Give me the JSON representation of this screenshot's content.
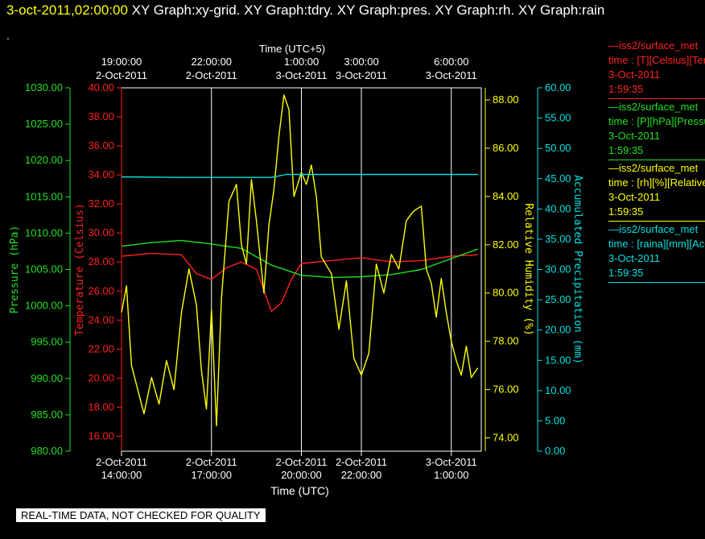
{
  "header": {
    "date_label": "3-oct-2011,02:00:00",
    "graphs_label": "  XY Graph:xy-grid.  XY Graph:tdry.  XY Graph:pres.  XY Graph:rh.  XY Graph:rain",
    "dot": "."
  },
  "legend": [
    {
      "line1": "—iss2/surface_met",
      "line2": "time : [T][Celsius][Temp",
      "line3": "3-Oct-2011",
      "line4": "1:59:35",
      "color": "#ff2020"
    },
    {
      "line1": "—iss2/surface_met",
      "line2": "time : [P][hPa][Pressure",
      "line3": "3-Oct-2011",
      "line4": "1:59:35",
      "color": "#20e020"
    },
    {
      "line1": "—iss2/surface_met",
      "line2": "time : [rh][%][Relative",
      "line3": "3-Oct-2011",
      "line4": "1:59:35",
      "color": "#ffff00"
    },
    {
      "line1": "—iss2/surface_met",
      "line2": "time : [raina][mm][Accum",
      "line3": "3-Oct-2011",
      "line4": "1:59:35",
      "color": "#00e0e0"
    }
  ],
  "footer": {
    "quality_notice": "REAL-TIME DATA, NOT CHECKED FOR QUALITY"
  },
  "chart_data": {
    "type": "line",
    "top_axis": {
      "title": "Time (UTC+5)",
      "ticks": [
        {
          "x": "2011-10-02T14:00",
          "l1": "19:00:00",
          "l2": "2-Oct-2011"
        },
        {
          "x": "2011-10-02T17:00",
          "l1": "22:00:00",
          "l2": "2-Oct-2011"
        },
        {
          "x": "2011-10-02T20:00",
          "l1": "1:00:00",
          "l2": "3-Oct-2011"
        },
        {
          "x": "2011-10-02T22:00",
          "l1": "3:00:00",
          "l2": "3-Oct-2011"
        },
        {
          "x": "2011-10-03T01:00",
          "l1": "6:00:00",
          "l2": "3-Oct-2011"
        }
      ]
    },
    "bottom_axis": {
      "title": "Time (UTC)",
      "ticks": [
        {
          "x": "2011-10-02T14:00",
          "l1": "2-Oct-2011",
          "l2": "14:00:00"
        },
        {
          "x": "2011-10-02T17:00",
          "l1": "2-Oct-2011",
          "l2": "17:00:00"
        },
        {
          "x": "2011-10-02T20:00",
          "l1": "2-Oct-2011",
          "l2": "20:00:00"
        },
        {
          "x": "2011-10-02T22:00",
          "l1": "2-Oct-2011",
          "l2": "22:00:00"
        },
        {
          "x": "2011-10-03T01:00",
          "l1": "3-Oct-2011",
          "l2": "1:00:00"
        }
      ]
    },
    "xlim": [
      "2011-10-02T14:00",
      "2011-10-03T02:00"
    ],
    "axes": {
      "pressure": {
        "label": "Pressure (hPa)",
        "color": "#20e020",
        "ylim": [
          980,
          1030
        ],
        "ticks": [
          "1030.00",
          "1025.00",
          "1020.00",
          "1015.00",
          "1010.00",
          "1005.00",
          "1000.00",
          "995.00",
          "990.00",
          "985.00",
          "980.00"
        ]
      },
      "temperature": {
        "label": "Temperature (Celsius)",
        "color": "#ff2020",
        "ylim": [
          14.97,
          40
        ],
        "ticks": [
          "40.00",
          "38.00",
          "36.00",
          "34.00",
          "32.00",
          "30.00",
          "28.00",
          "26.00",
          "24.00",
          "22.00",
          "20.00",
          "18.00",
          "16.00"
        ]
      },
      "humidity": {
        "label": "Relative Humidity (%)",
        "color": "#ffff00",
        "ylim": [
          73.45,
          88.5
        ],
        "ticks": [
          "88.00",
          "86.00",
          "84.00",
          "82.00",
          "80.00",
          "78.00",
          "76.00",
          "74.00"
        ]
      },
      "precip": {
        "label": "Accumulated Precipitation (mm)",
        "color": "#00e0e0",
        "ylim": [
          0,
          60
        ],
        "ticks": [
          "60.00",
          "55.00",
          "50.00",
          "45.00",
          "40.00",
          "35.00",
          "30.00",
          "25.00",
          "20.00",
          "15.00",
          "10.00",
          "5.00",
          "0.00"
        ]
      }
    },
    "series": [
      {
        "name": "temperature",
        "axis": "temperature",
        "x": [
          "2011-10-02T14:00",
          "2011-10-02T15:00",
          "2011-10-02T16:00",
          "2011-10-02T16:30",
          "2011-10-02T17:00",
          "2011-10-02T17:30",
          "2011-10-02T18:00",
          "2011-10-02T18:30",
          "2011-10-02T19:00",
          "2011-10-02T19:20",
          "2011-10-02T19:40",
          "2011-10-02T20:00",
          "2011-10-02T21:00",
          "2011-10-02T22:00",
          "2011-10-02T23:00",
          "2011-10-03T00:00",
          "2011-10-03T01:00",
          "2011-10-03T01:53"
        ],
        "values": [
          28.4,
          28.6,
          28.5,
          27.2,
          26.8,
          27.6,
          28.0,
          27.5,
          24.6,
          25.2,
          26.8,
          27.9,
          28.1,
          28.3,
          28.0,
          28.1,
          28.4,
          28.5
        ]
      },
      {
        "name": "pressure",
        "axis": "pressure",
        "x": [
          "2011-10-02T14:00",
          "2011-10-02T15:00",
          "2011-10-02T16:00",
          "2011-10-02T17:00",
          "2011-10-02T18:00",
          "2011-10-02T19:00",
          "2011-10-02T20:00",
          "2011-10-02T21:00",
          "2011-10-02T22:00",
          "2011-10-02T23:00",
          "2011-10-03T00:00",
          "2011-10-03T01:00",
          "2011-10-03T01:53"
        ],
        "values": [
          1008.2,
          1008.7,
          1009.0,
          1008.5,
          1007.9,
          1005.6,
          1004.2,
          1003.9,
          1004.0,
          1004.3,
          1005.0,
          1006.5,
          1007.8
        ]
      },
      {
        "name": "humidity",
        "axis": "humidity",
        "x": [
          "2011-10-02T14:00",
          "2011-10-02T14:10",
          "2011-10-02T14:20",
          "2011-10-02T14:30",
          "2011-10-02T14:45",
          "2011-10-02T15:00",
          "2011-10-02T15:15",
          "2011-10-02T15:30",
          "2011-10-02T15:45",
          "2011-10-02T16:00",
          "2011-10-02T16:15",
          "2011-10-02T16:30",
          "2011-10-02T16:40",
          "2011-10-02T16:50",
          "2011-10-02T17:00",
          "2011-10-02T17:10",
          "2011-10-02T17:20",
          "2011-10-02T17:35",
          "2011-10-02T17:50",
          "2011-10-02T18:00",
          "2011-10-02T18:10",
          "2011-10-02T18:20",
          "2011-10-02T18:30",
          "2011-10-02T18:45",
          "2011-10-02T18:55",
          "2011-10-02T19:05",
          "2011-10-02T19:15",
          "2011-10-02T19:25",
          "2011-10-02T19:35",
          "2011-10-02T19:45",
          "2011-10-02T20:00",
          "2011-10-02T20:10",
          "2011-10-02T20:20",
          "2011-10-02T20:30",
          "2011-10-02T20:40",
          "2011-10-02T21:00",
          "2011-10-02T21:15",
          "2011-10-02T21:30",
          "2011-10-02T21:45",
          "2011-10-02T22:00",
          "2011-10-02T22:15",
          "2011-10-02T22:30",
          "2011-10-02T22:45",
          "2011-10-02T23:00",
          "2011-10-02T23:15",
          "2011-10-02T23:30",
          "2011-10-02T23:45",
          "2011-10-03T00:00",
          "2011-10-03T00:10",
          "2011-10-03T00:20",
          "2011-10-03T00:30",
          "2011-10-03T00:40",
          "2011-10-03T00:50",
          "2011-10-03T01:00",
          "2011-10-03T01:10",
          "2011-10-03T01:20",
          "2011-10-03T01:30",
          "2011-10-03T01:40",
          "2011-10-03T01:53"
        ],
        "values": [
          79.2,
          80.3,
          77.0,
          76.2,
          75.0,
          76.5,
          75.4,
          77.2,
          76.0,
          79.2,
          81.0,
          79.5,
          76.8,
          75.2,
          79.3,
          74.5,
          79.8,
          83.8,
          84.5,
          82.0,
          81.2,
          84.7,
          83.0,
          80.0,
          82.8,
          84.3,
          86.5,
          88.2,
          87.6,
          84.0,
          85.0,
          84.5,
          85.3,
          84.0,
          81.5,
          80.8,
          78.5,
          80.5,
          77.3,
          76.6,
          77.5,
          81.2,
          80.0,
          81.6,
          81.0,
          83.0,
          83.4,
          83.6,
          81.0,
          80.4,
          79.0,
          80.6,
          79.2,
          78.0,
          77.2,
          76.6,
          77.8,
          76.5,
          76.9
        ]
      },
      {
        "name": "precipitation",
        "axis": "precip",
        "x": [
          "2011-10-02T14:00",
          "2011-10-02T16:00",
          "2011-10-02T19:00",
          "2011-10-02T19:30",
          "2011-10-03T01:53"
        ],
        "values": [
          45.3,
          45.2,
          45.2,
          45.7,
          45.7
        ]
      }
    ]
  }
}
